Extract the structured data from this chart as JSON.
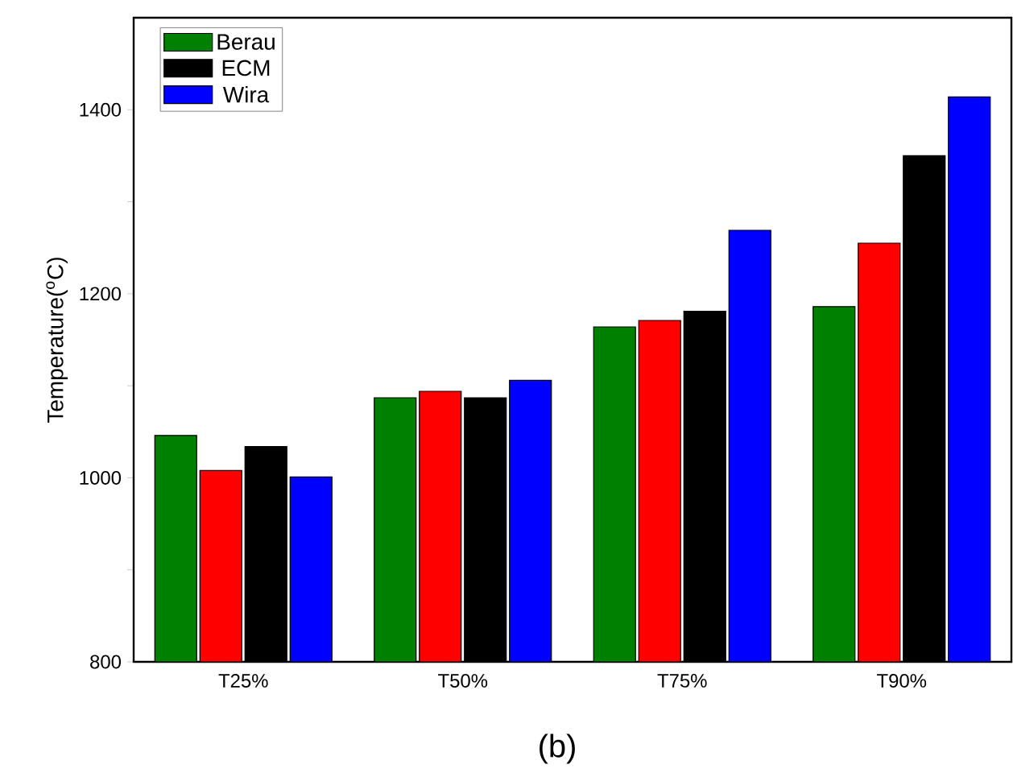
{
  "chart_data": {
    "type": "bar",
    "ylabel": "Temperature($^{o}$C)",
    "categories": [
      "T25%",
      "T50%",
      "T75%",
      "T90%"
    ],
    "series": [
      {
        "name": "Berau",
        "color": "#008000",
        "values": [
          1046,
          1087,
          1164,
          1186
        ]
      },
      {
        "color": "#ff0000",
        "values": [
          1008,
          1094,
          1171,
          1255
        ]
      },
      {
        "name": "ECM",
        "color": "#000000",
        "values": [
          1034,
          1087,
          1181,
          1350
        ]
      },
      {
        "name": "Wira",
        "color": "#0000ff",
        "values": [
          1001,
          1106,
          1269,
          1414
        ]
      }
    ],
    "ylim": [
      800,
      1500
    ],
    "yticks": [
      800,
      {
        "value": 900,
        "label": null
      },
      1000,
      {
        "value": 1100,
        "label": null
      },
      1200,
      {
        "value": 1300,
        "label": null
      },
      1400
    ],
    "grid": false,
    "legend": "top left",
    "annotations": [
      "(b)"
    ]
  }
}
